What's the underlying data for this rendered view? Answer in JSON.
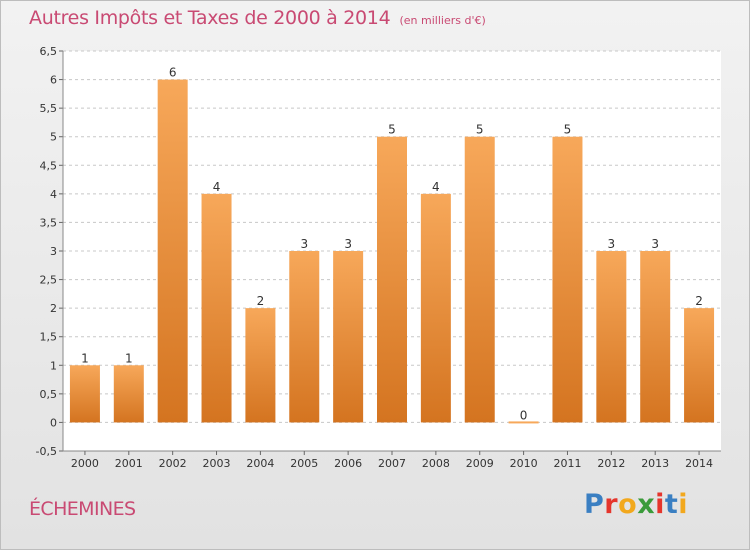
{
  "header": {
    "title": "Autres Impôts et Taxes de 2000 à 2014",
    "unit": "(en milliers d'€)"
  },
  "footer": {
    "commune": "ÉCHEMINES",
    "logo": "Proxiti"
  },
  "colors": {
    "title": "#c94a73",
    "bar_light": "#f7a85a",
    "bar_dark": "#d47420",
    "grid": "#c8c8c8"
  },
  "chart_data": {
    "type": "bar",
    "title": "Autres Impôts et Taxes de 2000 à 2014",
    "xlabel": "",
    "ylabel": "",
    "categories": [
      "2000",
      "2001",
      "2002",
      "2003",
      "2004",
      "2005",
      "2006",
      "2007",
      "2008",
      "2009",
      "2010",
      "2011",
      "2012",
      "2013",
      "2014"
    ],
    "values": [
      1,
      1,
      6,
      4,
      2,
      3,
      3,
      5,
      4,
      5,
      0,
      5,
      3,
      3,
      2
    ],
    "ylim": [
      -0.5,
      6.5
    ],
    "yticks": [
      "-0,5",
      "0",
      "0,5",
      "1",
      "1,5",
      "2",
      "2,5",
      "3",
      "3,5",
      "4",
      "4,5",
      "5",
      "5,5",
      "6",
      "6,5"
    ],
    "grid": true,
    "data_labels": true
  }
}
